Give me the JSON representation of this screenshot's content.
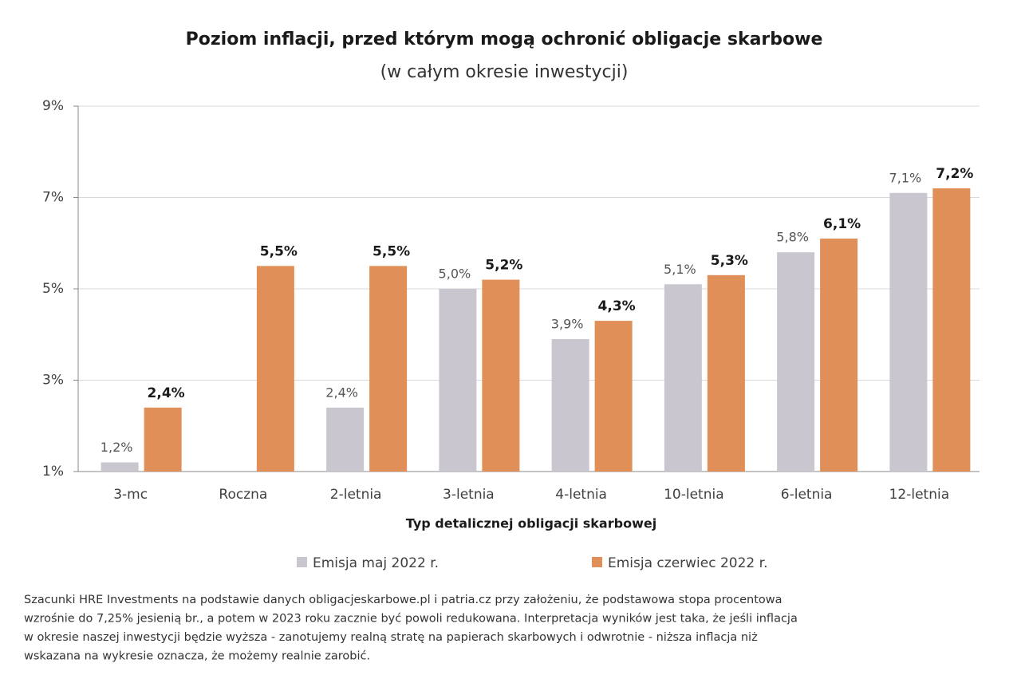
{
  "chart_data": {
    "type": "bar",
    "title": "Poziom inflacji, przed którym mogą ochronić obligacje skarbowe",
    "subtitle": "(w całym okresie inwestycji)",
    "x_label": "Typ detalicznej obligacji skarbowej",
    "categories": [
      "3-mc",
      "Roczna",
      "2-letnia",
      "3-letnia",
      "4-letnia",
      "10-letnia",
      "6-letnia",
      "12-letnia"
    ],
    "series": [
      {
        "name": "Emisja maj 2022 r.",
        "color": "#c9c6d0",
        "values": [
          1.2,
          null,
          2.4,
          5.0,
          3.9,
          5.1,
          5.8,
          7.1
        ],
        "value_labels": [
          "1,2%",
          null,
          "2,4%",
          "5,0%",
          "3,9%",
          "5,1%",
          "5,8%",
          "7,1%"
        ]
      },
      {
        "name": "Emisja czerwiec 2022 r.",
        "color": "#e08f58",
        "values": [
          2.4,
          5.5,
          5.5,
          5.2,
          4.3,
          5.3,
          6.1,
          7.2
        ],
        "value_labels": [
          "2,4%",
          "5,5%",
          "5,5%",
          "5,2%",
          "4,3%",
          "5,3%",
          "6,1%",
          "7,2%"
        ]
      }
    ],
    "ylim": [
      1,
      9
    ],
    "yticks": [
      {
        "value": 1,
        "label": "1%"
      },
      {
        "value": 3,
        "label": "3%"
      },
      {
        "value": 5,
        "label": "5%"
      },
      {
        "value": 7,
        "label": "7%"
      },
      {
        "value": 9,
        "label": "9%"
      }
    ],
    "grid": true,
    "legend": "bottom",
    "notes": [
      "Szacunki HRE Investments na podstawie danych obligacjeskarbowe.pl i patria.cz przy założeniu, że podstawowa stopa procentowa",
      "wzrośnie do 7,25% jesienią br., a potem w 2023 roku zacznie być powoli redukowana. Interpretacja wyników jest taka, że jeśli inflacja",
      "w okresie naszej inwestycji będzie wyższa - zanotujemy realną stratę na papierach skarbowych i odwrotnie - niższa inflacja niż",
      "wskazana na wykresie oznacza, że możemy realnie zarobić."
    ]
  }
}
